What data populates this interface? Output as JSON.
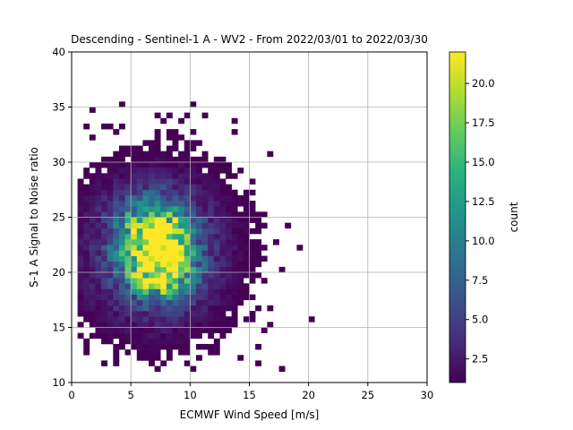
{
  "chart_data": {
    "type": "heatmap",
    "title": "Descending - Sentinel-1 A - WV2 - From 2022/03/01 to 2022/03/30",
    "xlabel": "ECMWF Wind Speed [m/s]",
    "ylabel": "S-1 A Signal to Noise ratio",
    "xlim": [
      0,
      30
    ],
    "ylim": [
      10,
      40
    ],
    "xticks": [
      0,
      5,
      10,
      15,
      20,
      25,
      30
    ],
    "yticks": [
      10,
      15,
      20,
      25,
      30,
      35,
      40
    ],
    "grid": true,
    "colormap": "viridis",
    "colorbar": {
      "label": "count",
      "range": [
        1,
        22
      ],
      "ticks": [
        2.5,
        5.0,
        7.5,
        10.0,
        12.5,
        15.0,
        17.5,
        20.0
      ]
    },
    "bin_size": {
      "x": 0.5,
      "y": 0.5
    },
    "density_model": {
      "components": [
        {
          "x": 7.0,
          "y": 23.5,
          "sx": 1.8,
          "sy": 2.0,
          "peak": 19
        },
        {
          "x": 7.5,
          "y": 20.3,
          "sx": 1.8,
          "sy": 1.8,
          "peak": 17
        },
        {
          "x": 7.0,
          "y": 22.0,
          "sx": 4.0,
          "sy": 4.5,
          "peak": 7
        }
      ],
      "sparse_region": {
        "x": [
          0.5,
          24
        ],
        "y": [
          11,
          36
        ]
      }
    }
  }
}
